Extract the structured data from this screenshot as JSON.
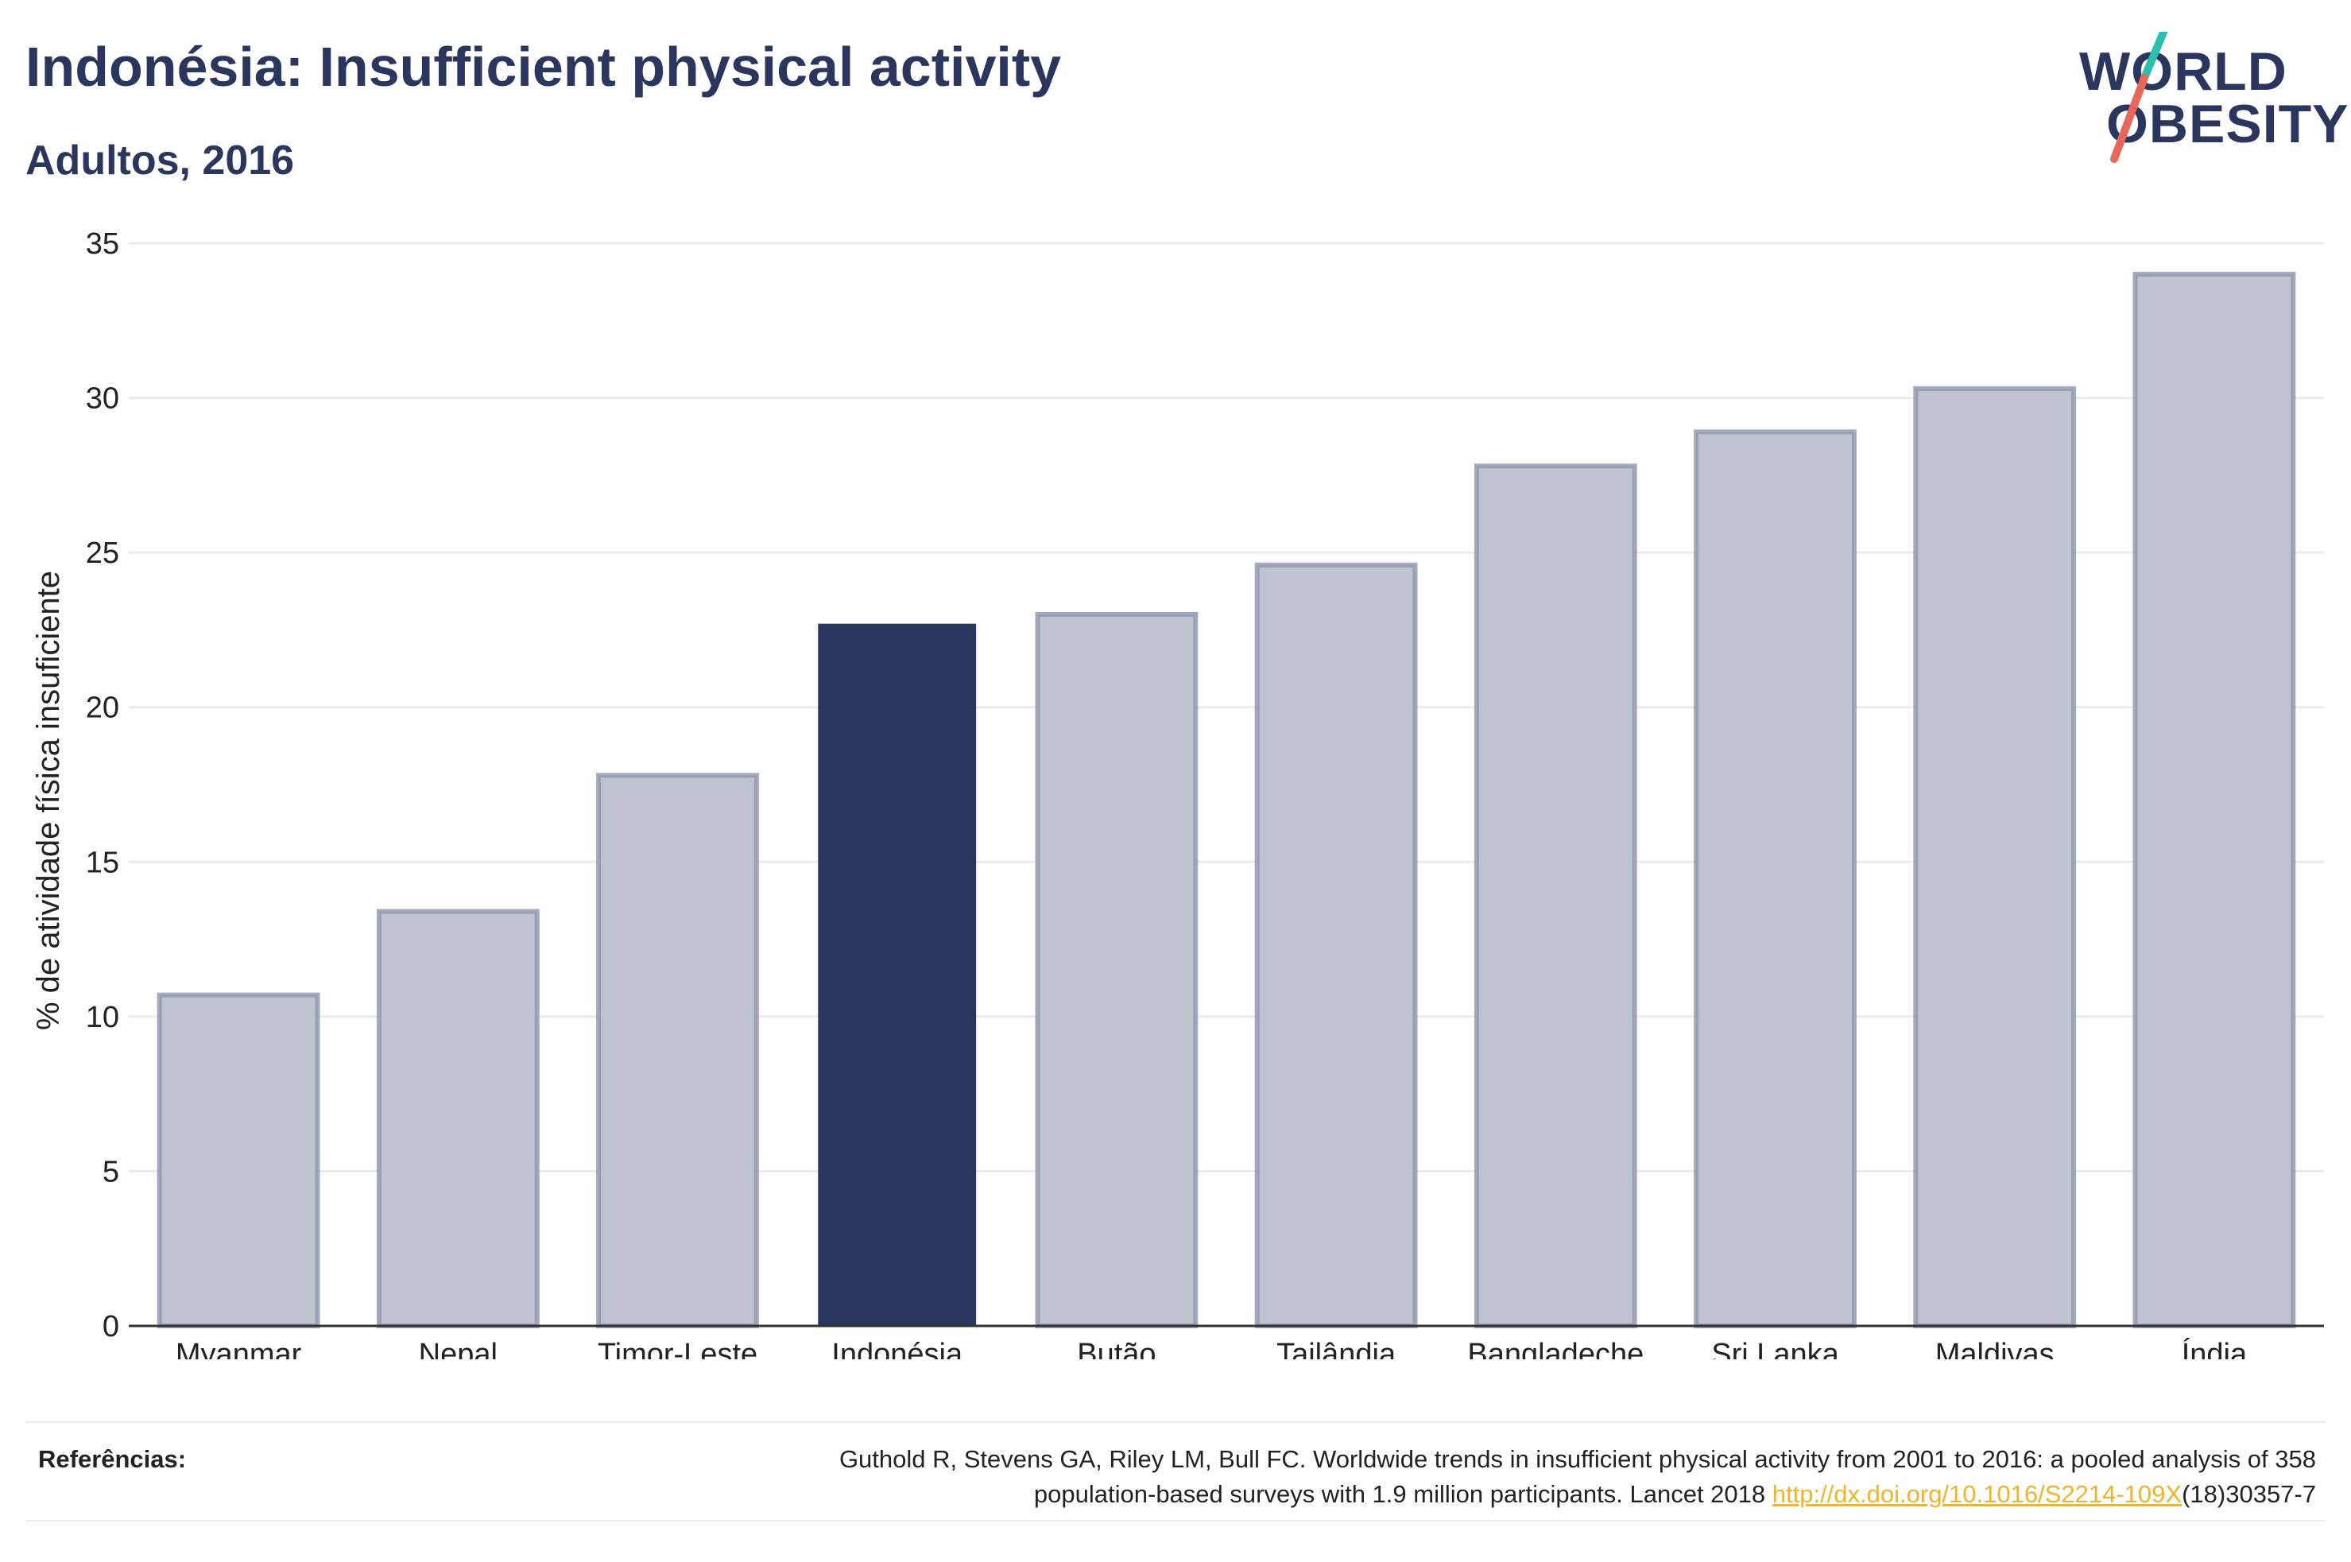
{
  "header": {
    "title": "Indonésia: Insufficient physical activity",
    "subtitle": "Adultos, 2016"
  },
  "logo": {
    "line1": "WORLD",
    "line2": "OBESITY",
    "colors": {
      "text": "#2b365f",
      "slash_top": "#2bbfb0",
      "slash_bottom": "#e8675a"
    }
  },
  "colors": {
    "highlight_bar": "#2b365f",
    "other_bar_fill": "#bfc2cf",
    "other_bar_stroke": "#8f95ad",
    "grid": "#ebebeb",
    "axis": "#333333",
    "link": "#f0b429"
  },
  "chart_data": {
    "type": "bar",
    "title": "Indonésia: Insufficient physical activity",
    "subtitle": "Adultos, 2016",
    "xlabel": "",
    "ylabel": "% de atividade física insuficiente",
    "ylim": [
      0,
      35
    ],
    "yticks": [
      0,
      5,
      10,
      15,
      20,
      25,
      30,
      35
    ],
    "grid": true,
    "legend": "none",
    "categories": [
      "Myanmar",
      "Nepal",
      "Timor-Leste",
      "Indonésia",
      "Butão",
      "Tailândia",
      "Bangladeche",
      "Sri Lanka",
      "Maldivas",
      "Índia"
    ],
    "values": [
      10.7,
      13.4,
      17.8,
      22.7,
      23.0,
      24.6,
      27.8,
      28.9,
      30.3,
      34.0
    ],
    "highlight": "Indonésia"
  },
  "footer": {
    "references_label": "Referências:",
    "reference_line1": "Guthold R, Stevens GA, Riley LM, Bull FC. Worldwide trends in insufficient physical activity from 2001 to 2016: a pooled analysis of 358",
    "reference_line2_pre": "population-based surveys with 1.9 million participants. Lancet 2018 ",
    "reference_link": "http://dx.doi.org/10.1016/S2214-109X",
    "reference_line2_post": "(18)30357-7"
  }
}
